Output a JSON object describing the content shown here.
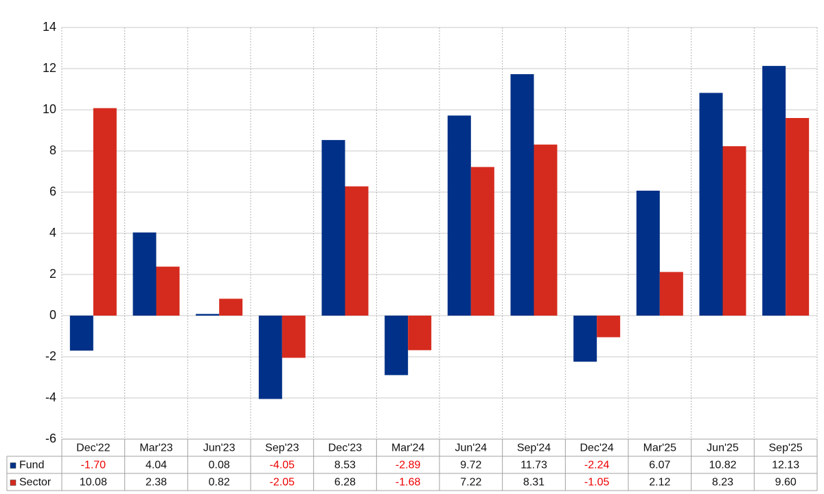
{
  "chart_data": {
    "type": "bar",
    "categories": [
      "Dec'22",
      "Mar'23",
      "Jun'23",
      "Sep'23",
      "Dec'23",
      "Mar'24",
      "Jun'24",
      "Sep'24",
      "Dec'24",
      "Mar'25",
      "Jun'25",
      "Sep'25"
    ],
    "series": [
      {
        "name": "Fund",
        "color": "#003087",
        "values": [
          -1.7,
          4.04,
          0.08,
          -4.05,
          8.53,
          -2.89,
          9.72,
          11.73,
          -2.24,
          6.07,
          10.82,
          12.13
        ],
        "value_labels": [
          "-1.70",
          "4.04",
          "0.08",
          "-4.05",
          "8.53",
          "-2.89",
          "9.72",
          "11.73",
          "-2.24",
          "6.07",
          "10.82",
          "12.13"
        ]
      },
      {
        "name": "Sector",
        "color": "#d52b1e",
        "values": [
          10.08,
          2.38,
          0.82,
          -2.05,
          6.28,
          -1.68,
          7.22,
          8.31,
          -1.05,
          2.12,
          8.23,
          9.6
        ],
        "value_labels": [
          "10.08",
          "2.38",
          "0.82",
          "-2.05",
          "6.28",
          "-1.68",
          "7.22",
          "8.31",
          "-1.05",
          "2.12",
          "8.23",
          "9.60"
        ]
      }
    ],
    "ylim": [
      -6,
      14
    ],
    "yticks": [
      -6,
      -4,
      -2,
      0,
      2,
      4,
      6,
      8,
      10,
      12,
      14
    ],
    "grid": true,
    "negative_label_color": "#ee0000"
  }
}
